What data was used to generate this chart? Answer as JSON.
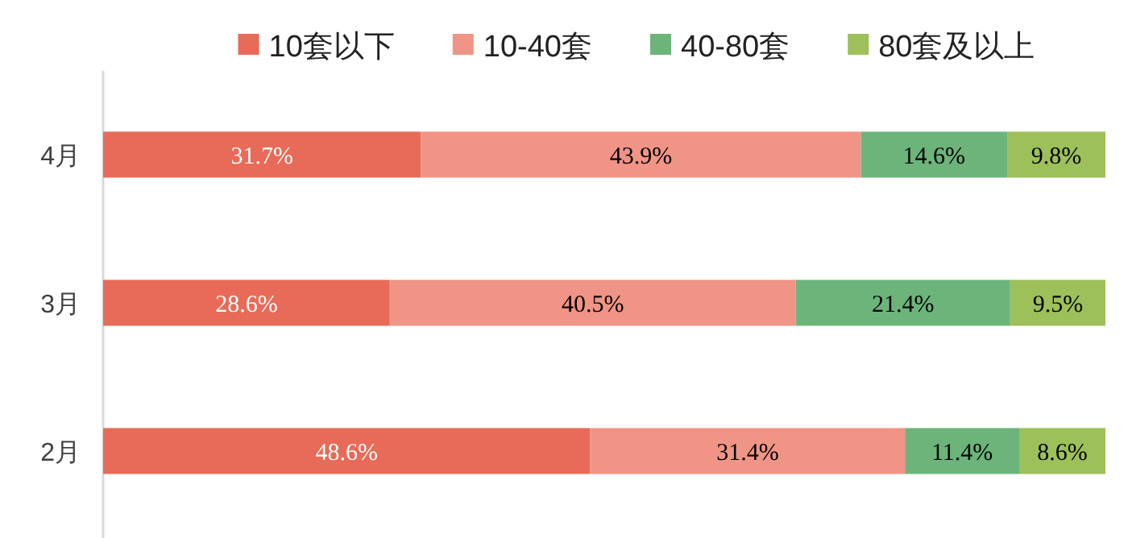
{
  "chart_data": {
    "type": "bar",
    "orientation": "horizontal",
    "stacked": true,
    "legend": "top",
    "xlim": [
      0,
      100
    ],
    "categories": [
      "4月",
      "3月",
      "2月"
    ],
    "series": [
      {
        "name": "10套以下",
        "color": "#e76b58",
        "values": [
          31.7,
          28.6,
          48.6
        ],
        "value_labels": [
          "31.7%",
          "28.6%",
          "48.6%"
        ]
      },
      {
        "name": "10-40套",
        "color": "#f09486",
        "values": [
          43.9,
          40.5,
          31.4
        ],
        "value_labels": [
          "43.9%",
          "40.5%",
          "31.4%"
        ]
      },
      {
        "name": "40-80套",
        "color": "#6db47b",
        "values": [
          14.6,
          21.4,
          11.4
        ],
        "value_labels": [
          "14.6%",
          "21.4%",
          "11.4%"
        ]
      },
      {
        "name": "80套及以上",
        "color": "#9dc05a",
        "values": [
          9.8,
          9.5,
          8.6
        ],
        "value_labels": [
          "9.8%",
          "9.5%",
          "8.6%"
        ]
      }
    ]
  }
}
